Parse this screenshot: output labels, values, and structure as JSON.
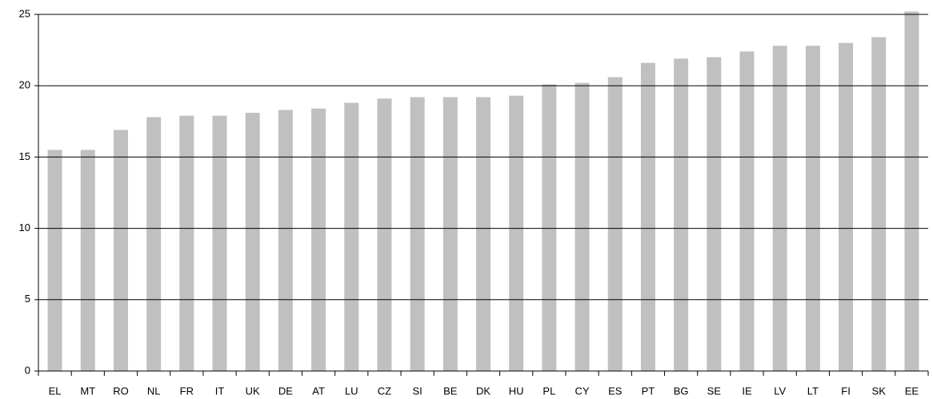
{
  "chart_data": {
    "type": "bar",
    "categories": [
      "EL",
      "MT",
      "RO",
      "NL",
      "FR",
      "IT",
      "UK",
      "DE",
      "AT",
      "LU",
      "CZ",
      "SI",
      "BE",
      "DK",
      "HU",
      "PL",
      "CY",
      "ES",
      "PT",
      "BG",
      "SE",
      "IE",
      "LV",
      "LT",
      "FI",
      "SK",
      "EE"
    ],
    "values": [
      15.5,
      15.5,
      16.9,
      17.8,
      17.9,
      17.9,
      18.1,
      18.3,
      18.4,
      18.8,
      19.1,
      19.2,
      19.2,
      19.2,
      19.3,
      20.1,
      20.2,
      20.6,
      21.6,
      21.9,
      22.0,
      22.4,
      22.8,
      22.8,
      23.0,
      23.4,
      25.2
    ],
    "color": "#c0c0c0",
    "ylim": [
      0,
      25
    ],
    "yticks": [
      0,
      5,
      10,
      15,
      20,
      25
    ],
    "grid": true
  }
}
